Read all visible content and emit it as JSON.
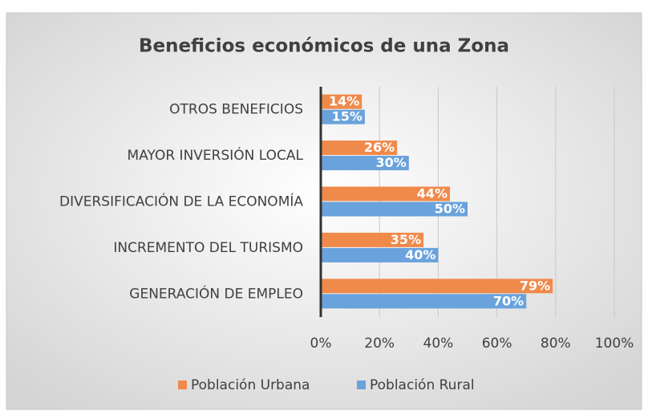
{
  "chart_data": {
    "type": "barh",
    "title": "Beneficios económicos de una Zona",
    "categories": [
      "OTROS BENEFICIOS",
      "MAYOR INVERSIÓN LOCAL",
      "DIVERSIFICACIÓN DE LA ECONOMÍA",
      "INCREMENTO DEL TURISMO",
      "GENERACIÓN DE EMPLEO"
    ],
    "series": [
      {
        "name": "Población Urbana",
        "color": "#f08a4b",
        "values": [
          14,
          26,
          44,
          35,
          79
        ],
        "value_labels": [
          "14%",
          "26%",
          "44%",
          "35%",
          "79%"
        ]
      },
      {
        "name": "Población Rural",
        "color": "#6aa2dc",
        "values": [
          15,
          30,
          50,
          40,
          70
        ],
        "value_labels": [
          "15%",
          "30%",
          "50%",
          "40%",
          "70%"
        ]
      }
    ],
    "xlim": [
      0,
      100
    ],
    "xticks": [
      {
        "value": 0,
        "label": "0%"
      },
      {
        "value": 20,
        "label": "20%"
      },
      {
        "value": 40,
        "label": "40%"
      },
      {
        "value": 60,
        "label": "60%"
      },
      {
        "value": 80,
        "label": "80%"
      },
      {
        "value": 100,
        "label": "100%"
      }
    ],
    "grid": true,
    "legend": "bottom"
  }
}
